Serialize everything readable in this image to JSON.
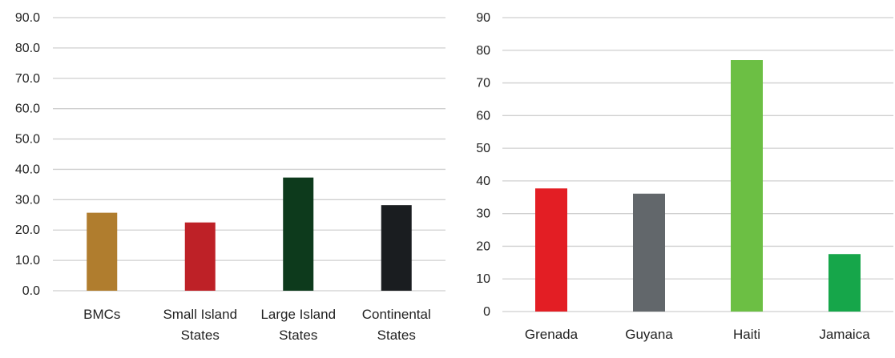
{
  "chart_data": [
    {
      "type": "bar",
      "categories": [
        [
          "BMCs"
        ],
        [
          "Small Island",
          "States"
        ],
        [
          "Large Island",
          "States"
        ],
        [
          "Continental",
          "States"
        ]
      ],
      "values": [
        25.7,
        22.5,
        37.3,
        28.2
      ],
      "colors": [
        "#b07d2e",
        "#be2127",
        "#0d3a1c",
        "#1a1d20"
      ],
      "yticks": [
        "0.0",
        "10.0",
        "20.0",
        "30.0",
        "40.0",
        "50.0",
        "60.0",
        "70.0",
        "80.0",
        "90.0"
      ],
      "ylim": [
        0,
        90
      ],
      "grid": true,
      "title": "",
      "xlabel": "",
      "ylabel": ""
    },
    {
      "type": "bar",
      "categories": [
        [
          "Grenada"
        ],
        [
          "Guyana"
        ],
        [
          "Haiti"
        ],
        [
          "Jamaica"
        ]
      ],
      "values": [
        37.7,
        36.1,
        77.0,
        17.6
      ],
      "colors": [
        "#e31e24",
        "#62676b",
        "#6cbf44",
        "#16a64a"
      ],
      "yticks": [
        "0",
        "10",
        "20",
        "30",
        "40",
        "50",
        "60",
        "70",
        "80",
        "90"
      ],
      "ylim": [
        0,
        90
      ],
      "grid": true,
      "title": "",
      "xlabel": "",
      "ylabel": ""
    }
  ]
}
